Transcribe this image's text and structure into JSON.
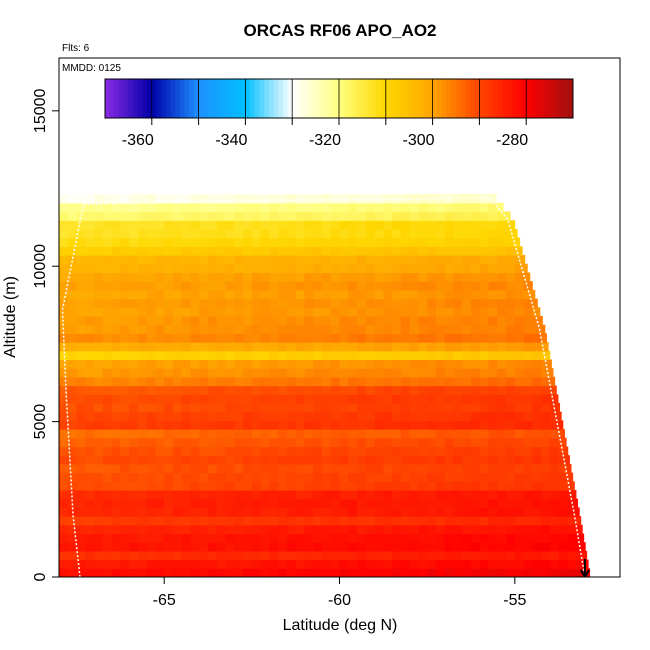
{
  "chart_data": {
    "type": "heatmap",
    "title": "ORCAS RF06 APO_AO2",
    "flights_label": "Flts: 6",
    "date_label": "MMDD: 0125",
    "xlabel": "Latitude (deg N)",
    "ylabel": "Altitude (m)",
    "xlim": [
      -68,
      -52
    ],
    "ylim": [
      0,
      16700
    ],
    "x_ticks": [
      -65,
      -60,
      -55
    ],
    "x_tick_labels": [
      "-65",
      "-60",
      "-55"
    ],
    "y_ticks": [
      0,
      5000,
      10000,
      15000
    ],
    "y_tick_labels": [
      "0",
      "5000",
      "10000",
      "15000"
    ],
    "colorbar": {
      "range": [
        -367,
        -267
      ],
      "ticks": [
        -360,
        -340,
        -320,
        -300,
        -280
      ],
      "tick_labels": [
        "-360",
        "-340",
        "-320",
        "-300",
        "-280"
      ],
      "colors": [
        "#8a2be2",
        "#0000a8",
        "#1e90ff",
        "#00bfff",
        "#ffffff",
        "#ffff80",
        "#ffd700",
        "#ffa500",
        "#ff4500",
        "#ff0000",
        "#a01010"
      ]
    },
    "field": {
      "lat_range": [
        -68,
        -53
      ],
      "alt_range": [
        0,
        12300
      ],
      "profile": [
        {
          "alt": 0,
          "value": -278
        },
        {
          "alt": 500,
          "value": -281
        },
        {
          "alt": 1500,
          "value": -283
        },
        {
          "alt": 3000,
          "value": -287
        },
        {
          "alt": 5000,
          "value": -289
        },
        {
          "alt": 6500,
          "value": -292
        },
        {
          "alt": 7200,
          "value": -305
        },
        {
          "alt": 8000,
          "value": -293
        },
        {
          "alt": 9500,
          "value": -297
        },
        {
          "alt": 10500,
          "value": -303
        },
        {
          "alt": 11500,
          "value": -315
        },
        {
          "alt": 12300,
          "value": -325
        }
      ]
    },
    "flight_track": [
      [
        -67.4,
        0
      ],
      [
        -67.6,
        2000
      ],
      [
        -67.8,
        6000
      ],
      [
        -67.9,
        8600
      ],
      [
        -67.3,
        12000
      ],
      [
        -63.2,
        12100
      ],
      [
        -55.7,
        12200
      ],
      [
        -55.2,
        11500
      ],
      [
        -54.3,
        8000
      ],
      [
        -53.8,
        5000
      ],
      [
        -53.3,
        2000
      ],
      [
        -53.0,
        0
      ]
    ]
  }
}
